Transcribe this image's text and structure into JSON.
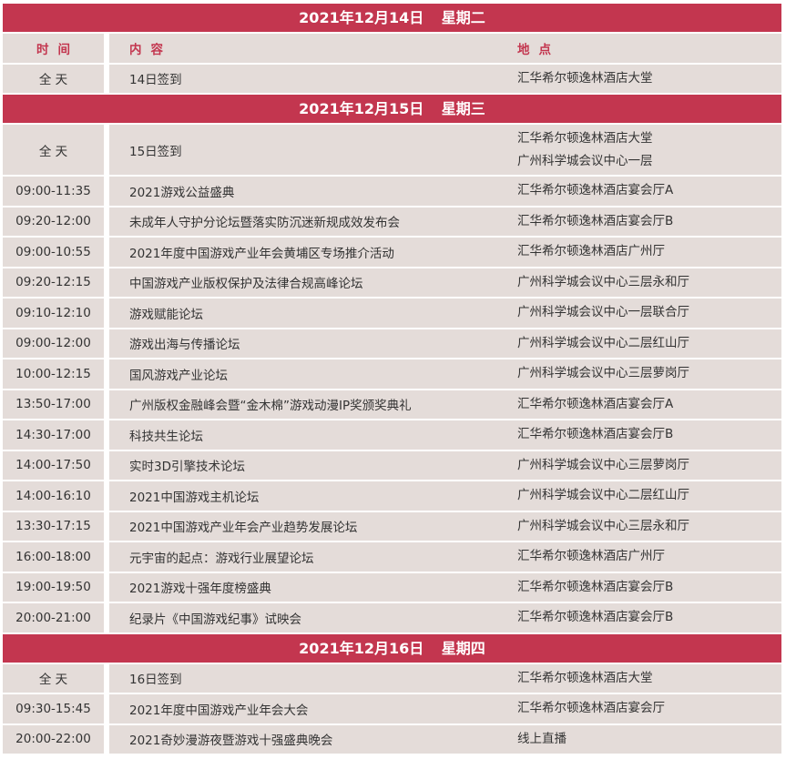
{
  "header": {
    "time": "时间",
    "content": "内容",
    "location": "地点"
  },
  "colors": {
    "accent": "#c3364f",
    "row_bg": "#e4dcd9"
  },
  "days": [
    {
      "title": "2021年12月14日 星期二",
      "show_header": true,
      "rows": [
        {
          "time": "全 天",
          "content": "14日签到",
          "location": [
            "汇华希尔顿逸林酒店大堂"
          ]
        }
      ]
    },
    {
      "title": "2021年12月15日 星期三",
      "rows": [
        {
          "time": "全 天",
          "content": "15日签到",
          "location": [
            "汇华希尔顿逸林酒店大堂",
            "广州科学城会议中心一层"
          ]
        },
        {
          "time": "09:00-11:35",
          "content": "2021游戏公益盛典",
          "location": [
            "汇华希尔顿逸林酒店宴会厅A"
          ]
        },
        {
          "time": "09:20-12:00",
          "content": "未成年人守护分论坛暨落实防沉迷新规成效发布会",
          "location": [
            "汇华希尔顿逸林酒店宴会厅B"
          ]
        },
        {
          "time": "09:00-10:55",
          "content": "2021年度中国游戏产业年会黄埔区专场推介活动",
          "location": [
            "汇华希尔顿逸林酒店广州厅"
          ]
        },
        {
          "time": "09:20-12:15",
          "content": "中国游戏产业版权保护及法律合规高峰论坛",
          "location": [
            "广州科学城会议中心三层永和厅"
          ]
        },
        {
          "time": "09:10-12:10",
          "content": "游戏赋能论坛",
          "location": [
            "广州科学城会议中心一层联合厅"
          ]
        },
        {
          "time": "09:00-12:00",
          "content": "游戏出海与传播论坛",
          "location": [
            "广州科学城会议中心二层红山厅"
          ]
        },
        {
          "time": "10:00-12:15",
          "content": "国风游戏产业论坛",
          "location": [
            "广州科学城会议中心三层萝岗厅"
          ]
        },
        {
          "time": "13:50-17:00",
          "content": "广州版权金融峰会暨“金木棉”游戏动漫IP奖颁奖典礼",
          "location": [
            "汇华希尔顿逸林酒店宴会厅A"
          ]
        },
        {
          "time": "14:30-17:00",
          "content": "科技共生论坛",
          "location": [
            "汇华希尔顿逸林酒店宴会厅B"
          ]
        },
        {
          "time": "14:00-17:50",
          "content": "实时3D引擎技术论坛",
          "location": [
            "广州科学城会议中心三层萝岗厅"
          ]
        },
        {
          "time": "14:00-16:10",
          "content": "2021中国游戏主机论坛",
          "location": [
            "广州科学城会议中心二层红山厅"
          ]
        },
        {
          "time": "13:30-17:15",
          "content": "2021中国游戏产业年会产业趋势发展论坛",
          "location": [
            "广州科学城会议中心三层永和厅"
          ]
        },
        {
          "time": "16:00-18:00",
          "content": "元宇宙的起点：游戏行业展望论坛",
          "location": [
            "汇华希尔顿逸林酒店广州厅"
          ]
        },
        {
          "time": "19:00-19:50",
          "content": "2021游戏十强年度榜盛典",
          "location": [
            "汇华希尔顿逸林酒店宴会厅B"
          ]
        },
        {
          "time": "20:00-21:00",
          "content": "纪录片《中国游戏纪事》试映会",
          "location": [
            "汇华希尔顿逸林酒店宴会厅B"
          ]
        }
      ]
    },
    {
      "title": "2021年12月16日 星期四",
      "rows": [
        {
          "time": "全 天",
          "content": "16日签到",
          "location": [
            "汇华希尔顿逸林酒店大堂"
          ]
        },
        {
          "time": "09:30-15:45",
          "content": "2021年度中国游戏产业年会大会",
          "location": [
            "汇华希尔顿逸林酒店宴会厅"
          ]
        },
        {
          "time": "20:00-22:00",
          "content": "2021奇妙漫游夜暨游戏十强盛典晚会",
          "location": [
            "线上直播"
          ]
        }
      ]
    }
  ]
}
